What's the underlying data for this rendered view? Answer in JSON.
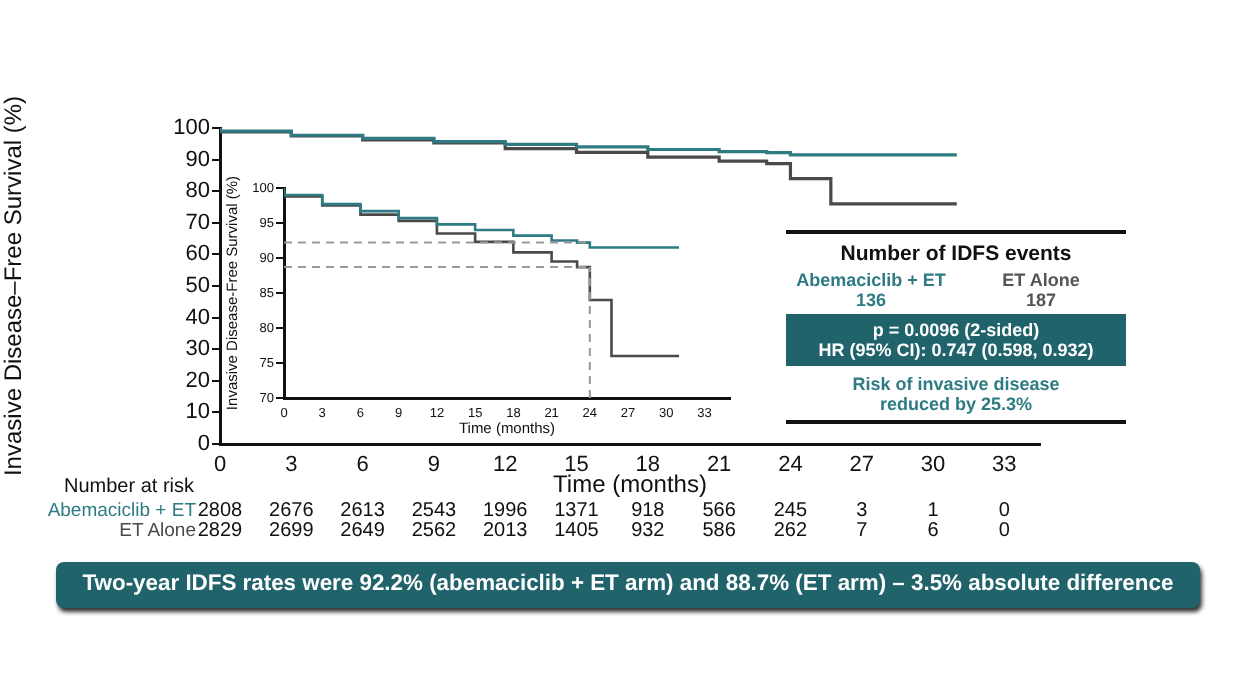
{
  "chart_data": [
    {
      "type": "step",
      "xlabel": "Time (months)",
      "ylabel": "Invasive Disease–Free Survival (%)",
      "xlim": [
        0,
        34.5
      ],
      "xticks": [
        0,
        3,
        6,
        9,
        12,
        15,
        18,
        21,
        24,
        27,
        30,
        33
      ],
      "ylim": [
        0,
        100
      ],
      "yticks": [
        0,
        10,
        20,
        30,
        40,
        50,
        60,
        70,
        80,
        90,
        100
      ],
      "grid": false,
      "legend": false,
      "marker": "none",
      "series": [
        {
          "name": "Abemaciclib + ET",
          "color": "#2e7b83",
          "x": [
            0,
            3,
            6,
            9,
            12,
            15,
            18,
            21,
            23,
            24,
            25,
            31
          ],
          "values": [
            100,
            99,
            97.7,
            96.7,
            95.7,
            94.8,
            94,
            93.2,
            92.5,
            92.2,
            91.5,
            91.5
          ]
        },
        {
          "name": "ET Alone",
          "color": "#4a4a4a",
          "x": [
            0,
            3,
            6,
            9,
            12,
            15,
            18,
            21,
            23,
            24,
            25.7,
            26.8,
            31
          ],
          "values": [
            100,
            98.8,
            97.5,
            96.2,
            95.3,
            93.5,
            92.3,
            90.8,
            89.5,
            88.7,
            84,
            76,
            76
          ]
        }
      ],
      "annotations": [
        "Number at risk",
        "2808",
        "2676",
        "2613",
        "2543",
        "1996",
        "1371",
        "918",
        "566",
        "245",
        "3",
        "1",
        "0",
        "2829",
        "2699",
        "2649",
        "2562",
        "2013",
        "1405",
        "932",
        "586",
        "262",
        "7",
        "6",
        "0",
        "Number of IDFS events",
        "Abemaciclib + ET",
        "ET Alone",
        "136",
        "187",
        "p = 0.0096 (2-sided)",
        "HR (95% CI): 0.747 (0.598, 0.932)",
        "Risk of invasive disease reduced by 25.3%",
        "Two-year IDFS rates were 92.2% (abemaciclib + ET arm) and 88.7% (ET arm) – 3.5% absolute difference"
      ]
    },
    {
      "type": "step",
      "xlabel": "Time (months)",
      "ylabel": "Invasive Disease-Free Survival (%)",
      "xlim": [
        0,
        35
      ],
      "xticks": [
        0,
        3,
        6,
        9,
        12,
        15,
        18,
        21,
        24,
        27,
        30,
        33
      ],
      "ylim": [
        70,
        100
      ],
      "yticks": [
        70,
        75,
        80,
        85,
        90,
        95,
        100
      ],
      "grid": false,
      "legend": false,
      "marker": "none",
      "series": [
        {
          "color": "#2e7b83",
          "x": [
            0,
            3,
            6,
            9,
            12,
            15,
            18,
            21,
            23,
            24,
            25,
            31
          ],
          "values": [
            100,
            99,
            97.7,
            96.7,
            95.7,
            94.8,
            94,
            93.2,
            92.5,
            92.2,
            91.5,
            91.5
          ]
        },
        {
          "color": "#4a4a4a",
          "x": [
            0,
            3,
            6,
            9,
            12,
            15,
            18,
            21,
            23,
            24,
            25.7,
            26.8,
            31
          ],
          "values": [
            100,
            98.8,
            97.5,
            96.2,
            95.3,
            93.5,
            92.3,
            90.8,
            89.5,
            88.7,
            84,
            76,
            76
          ]
        }
      ],
      "ref_lines": [
        {
          "axis": "y",
          "value": 92.2,
          "color": "#999999",
          "line_style": "dashed"
        },
        {
          "axis": "y",
          "value": 88.7,
          "color": "#999999",
          "line_style": "dashed"
        },
        {
          "axis": "x",
          "value": 24,
          "color": "#999999",
          "line_style": "dashed"
        }
      ]
    }
  ]
}
